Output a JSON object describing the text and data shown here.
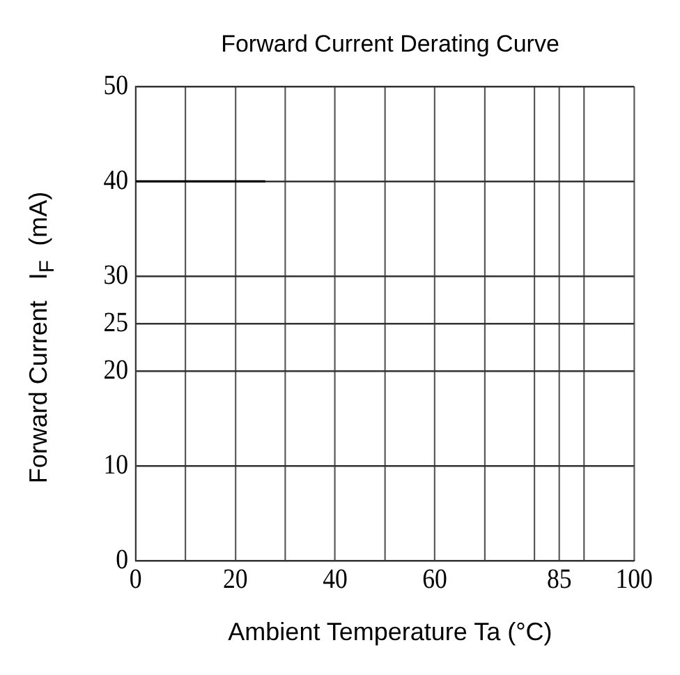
{
  "chart_data": {
    "type": "line",
    "title": "Forward Current Derating Curve",
    "xlabel": "Ambient Temperature Ta (°C)",
    "ylabel": "Forward Current   I$_{F}$  (mA)",
    "x": [
      0,
      26
    ],
    "series": [
      {
        "color": "#000000",
        "values": [
          40,
          40
        ]
      }
    ],
    "xlim": [
      0,
      100
    ],
    "xticks": [
      0,
      {
        "value": 10,
        "label": null
      },
      20,
      {
        "value": 30,
        "label": null
      },
      40,
      {
        "value": 50,
        "label": null
      },
      60,
      {
        "value": 70,
        "label": null
      },
      {
        "value": 80,
        "label": null
      },
      85,
      {
        "value": 90,
        "label": null
      },
      100
    ],
    "ylim": [
      0,
      50
    ],
    "yticks": [
      0,
      10,
      20,
      25,
      30,
      40,
      50
    ],
    "grid": true,
    "marker": "none",
    "line_style": "solid",
    "legend": false
  }
}
